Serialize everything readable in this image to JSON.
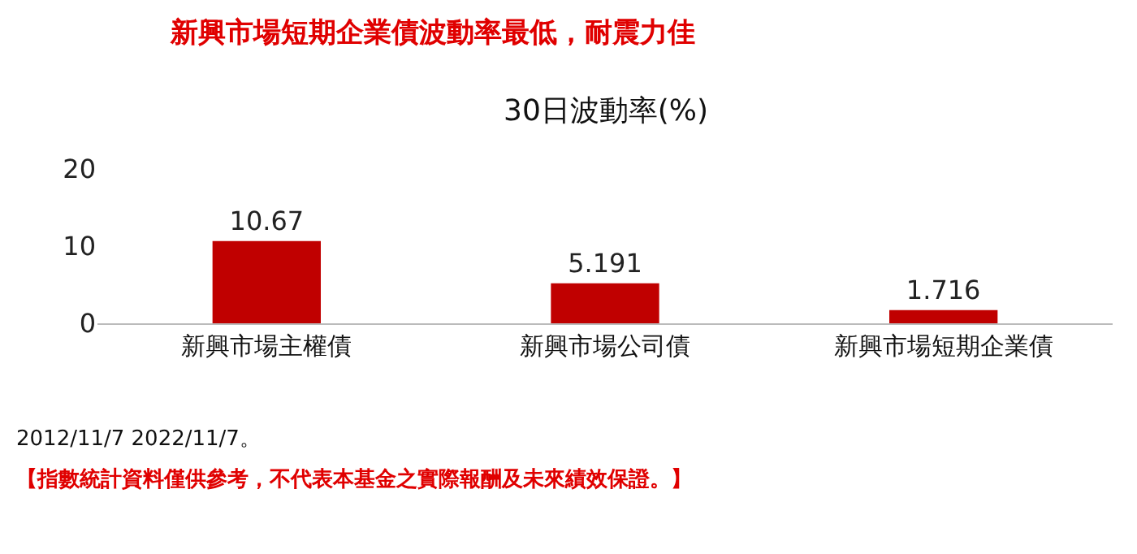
{
  "chart_data": {
    "type": "bar",
    "title": "新興市場短期企業債波動率最低，耐震力佳",
    "subtitle": "30日波動率(%)",
    "categories": [
      "新興市場主權債",
      "新興市場公司債",
      "新興市場短期企業債"
    ],
    "values": [
      10.67,
      5.191,
      1.716
    ],
    "color": "#c00000",
    "ylim": [
      0,
      20
    ],
    "yticks": [
      0,
      10,
      20
    ],
    "grid": false,
    "data_labels": true,
    "annotations": [
      "2012/11/7 2022/11/7。",
      "【指數統計資料僅供參考，不代表本基金之實際報酬及未來績效保證。】"
    ]
  }
}
